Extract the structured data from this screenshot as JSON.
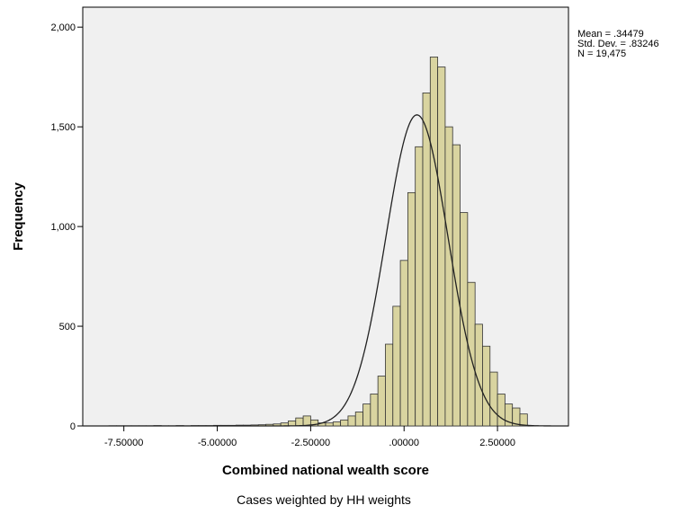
{
  "chart_data": {
    "type": "bar",
    "subtype": "histogram",
    "xlabel": "Combined national wealth score",
    "ylabel": "Frequency",
    "footnote": "Cases weighted by HH weights",
    "x_tick_values": [
      -7.5,
      -5.0,
      -2.5,
      0.0,
      2.5
    ],
    "x_tick_labels": [
      "-7.50000",
      "-5.00000",
      "-2.50000",
      ".00000",
      "2.50000"
    ],
    "y_tick_values": [
      0,
      500,
      1000,
      1500,
      2000
    ],
    "y_tick_labels": [
      "0",
      "500",
      "1,000",
      "1,500",
      "2,000"
    ],
    "xlim": [
      -8.6,
      4.4
    ],
    "ylim": [
      0,
      2100
    ],
    "bin_width": 0.2,
    "bins_left_edges": [
      -7.9,
      -7.7,
      -7.5,
      -7.3,
      -7.1,
      -6.9,
      -6.7,
      -6.5,
      -6.3,
      -6.1,
      -5.9,
      -5.7,
      -5.5,
      -5.3,
      -5.1,
      -4.9,
      -4.7,
      -4.5,
      -4.3,
      -4.1,
      -3.9,
      -3.7,
      -3.5,
      -3.3,
      -3.1,
      -2.9,
      -2.7,
      -2.5,
      -2.3,
      -2.1,
      -1.9,
      -1.7,
      -1.5,
      -1.3,
      -1.1,
      -0.9,
      -0.7,
      -0.5,
      -0.3,
      -0.1,
      0.1,
      0.3,
      0.5,
      0.7,
      0.9,
      1.1,
      1.3,
      1.5,
      1.7,
      1.9,
      2.1,
      2.3,
      2.5,
      2.7,
      2.9,
      3.1
    ],
    "frequencies": [
      1,
      1,
      1,
      1,
      1,
      1,
      2,
      1,
      1,
      2,
      1,
      2,
      2,
      2,
      3,
      3,
      3,
      4,
      4,
      5,
      6,
      8,
      10,
      15,
      25,
      40,
      50,
      30,
      15,
      15,
      20,
      30,
      50,
      70,
      110,
      160,
      250,
      410,
      600,
      830,
      1170,
      1400,
      1670,
      1850,
      1800,
      1500,
      1410,
      1070,
      720,
      510,
      400,
      270,
      160,
      110,
      90,
      60
    ],
    "normal_curve": {
      "mean": 0.34479,
      "std_dev": 0.83246,
      "n": 19475,
      "peak": 1560
    },
    "legend": "none",
    "grid": false,
    "background": "#f0f0f0",
    "bar_fill": "#d9d4a0",
    "bar_stroke": "#333333",
    "curve_color": "#222222",
    "stats": {
      "mean": "Mean = .34479",
      "std_dev": "Std. Dev. = .83246",
      "n": "N = 19,475"
    }
  }
}
